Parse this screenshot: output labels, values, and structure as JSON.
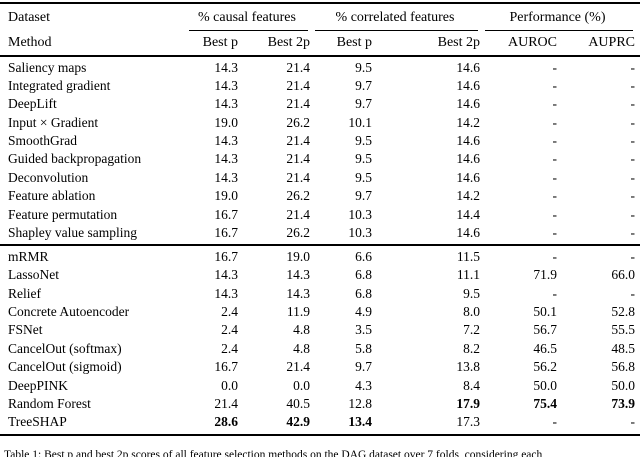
{
  "header": {
    "dataset_label": "Dataset",
    "method_label": "Method",
    "groups": [
      {
        "label": "% causal features",
        "sub": [
          "Best p",
          "Best 2p"
        ]
      },
      {
        "label": "% correlated features",
        "sub": [
          "Best p",
          "Best 2p"
        ]
      },
      {
        "label": "Performance (%)",
        "sub": [
          "AUROC",
          "AUPRC"
        ]
      }
    ]
  },
  "sections": [
    {
      "name": "attribution-methods",
      "rows": [
        {
          "method": "Saliency maps",
          "values": [
            "14.3",
            "21.4",
            "9.5",
            "14.6",
            "-",
            "-"
          ],
          "bold": []
        },
        {
          "method": "Integrated gradient",
          "values": [
            "14.3",
            "21.4",
            "9.7",
            "14.6",
            "-",
            "-"
          ],
          "bold": []
        },
        {
          "method": "DeepLift",
          "values": [
            "14.3",
            "21.4",
            "9.7",
            "14.6",
            "-",
            "-"
          ],
          "bold": []
        },
        {
          "method": "Input × Gradient",
          "values": [
            "19.0",
            "26.2",
            "10.1",
            "14.2",
            "-",
            "-"
          ],
          "bold": []
        },
        {
          "method": "SmoothGrad",
          "values": [
            "14.3",
            "21.4",
            "9.5",
            "14.6",
            "-",
            "-"
          ],
          "bold": []
        },
        {
          "method": "Guided backpropagation",
          "values": [
            "14.3",
            "21.4",
            "9.5",
            "14.6",
            "-",
            "-"
          ],
          "bold": []
        },
        {
          "method": "Deconvolution",
          "values": [
            "14.3",
            "21.4",
            "9.5",
            "14.6",
            "-",
            "-"
          ],
          "bold": []
        },
        {
          "method": "Feature ablation",
          "values": [
            "19.0",
            "26.2",
            "9.7",
            "14.2",
            "-",
            "-"
          ],
          "bold": []
        },
        {
          "method": "Feature permutation",
          "values": [
            "16.7",
            "21.4",
            "10.3",
            "14.4",
            "-",
            "-"
          ],
          "bold": []
        },
        {
          "method": "Shapley value sampling",
          "values": [
            "16.7",
            "26.2",
            "10.3",
            "14.6",
            "-",
            "-"
          ],
          "bold": []
        }
      ]
    },
    {
      "name": "feature-selection-methods",
      "rows": [
        {
          "method": "mRMR",
          "values": [
            "16.7",
            "19.0",
            "6.6",
            "11.5",
            "-",
            "-"
          ],
          "bold": []
        },
        {
          "method": "LassoNet",
          "values": [
            "14.3",
            "14.3",
            "6.8",
            "11.1",
            "71.9",
            "66.0"
          ],
          "bold": []
        },
        {
          "method": "Relief",
          "values": [
            "14.3",
            "14.3",
            "6.8",
            "9.5",
            "-",
            "-"
          ],
          "bold": []
        },
        {
          "method": "Concrete Autoencoder",
          "values": [
            "2.4",
            "11.9",
            "4.9",
            "8.0",
            "50.1",
            "52.8"
          ],
          "bold": []
        },
        {
          "method": "FSNet",
          "values": [
            "2.4",
            "4.8",
            "3.5",
            "7.2",
            "56.7",
            "55.5"
          ],
          "bold": []
        },
        {
          "method": "CancelOut (softmax)",
          "values": [
            "2.4",
            "4.8",
            "5.8",
            "8.2",
            "46.5",
            "48.5"
          ],
          "bold": []
        },
        {
          "method": "CancelOut (sigmoid)",
          "values": [
            "16.7",
            "21.4",
            "9.7",
            "13.8",
            "56.2",
            "56.8"
          ],
          "bold": []
        },
        {
          "method": "DeepPINK",
          "values": [
            "0.0",
            "0.0",
            "4.3",
            "8.4",
            "50.0",
            "50.0"
          ],
          "bold": []
        },
        {
          "method": "Random Forest",
          "values": [
            "21.4",
            "40.5",
            "12.8",
            "17.9",
            "75.4",
            "73.9"
          ],
          "bold": [
            3,
            4,
            5
          ]
        },
        {
          "method": "TreeSHAP",
          "values": [
            "28.6",
            "42.9",
            "13.4",
            "17.3",
            "-",
            "-"
          ],
          "bold": [
            0,
            1,
            2
          ]
        }
      ]
    }
  ],
  "caption": "Table 1: Best p and best 2p scores of all feature selection methods on the DAG dataset over 7 folds, considering each"
}
